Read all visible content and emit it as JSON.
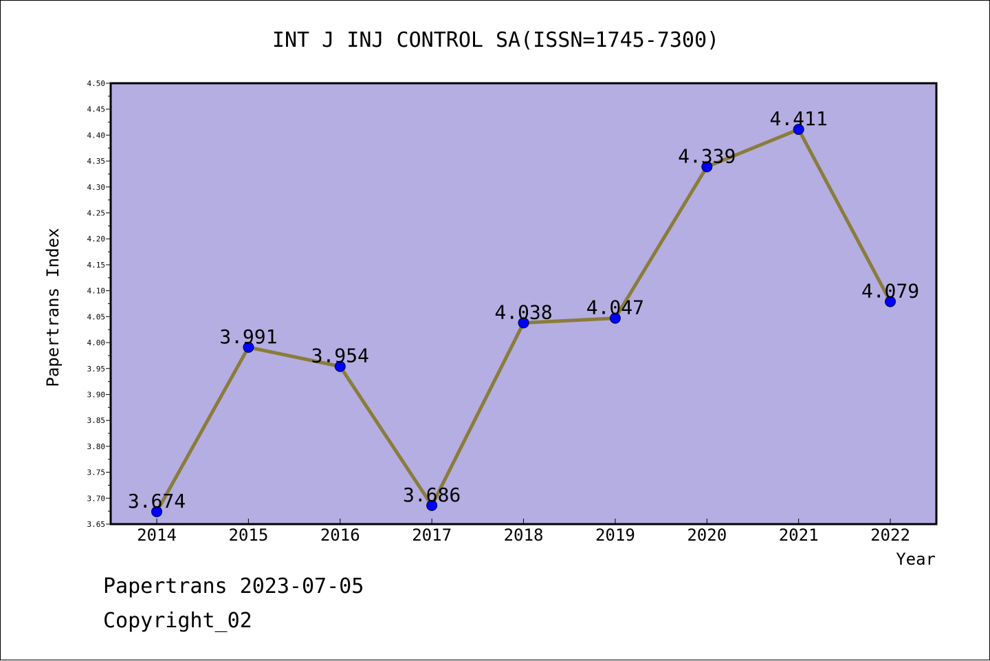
{
  "chart_data": {
    "type": "line",
    "title": "INT J INJ CONTROL SA(ISSN=1745-7300)",
    "xlabel": "Year",
    "ylabel": "Papertrans Index",
    "categories": [
      "2014",
      "2015",
      "2016",
      "2017",
      "2018",
      "2019",
      "2020",
      "2021",
      "2022"
    ],
    "values": [
      3.674,
      3.991,
      3.954,
      3.686,
      4.038,
      4.047,
      4.339,
      4.411,
      4.079
    ],
    "data_labels": [
      "3.674",
      "3.991",
      "3.954",
      "3.686",
      "4.038",
      "4.047",
      "4.339",
      "4.411",
      "4.079"
    ],
    "ylim": [
      3.65,
      4.5
    ],
    "yticks": [
      "3.65",
      "3.70",
      "3.75",
      "3.80",
      "3.85",
      "3.90",
      "3.95",
      "4.00",
      "4.05",
      "4.10",
      "4.15",
      "4.20",
      "4.25",
      "4.30",
      "4.35",
      "4.40",
      "4.45",
      "4.50"
    ],
    "grid": false,
    "colors": {
      "plot_background": "#b4aee2",
      "line": "#8a7c3a",
      "marker": "#0000ff"
    }
  },
  "footer": {
    "line1": "Papertrans 2023-07-05",
    "line2": "Copyright_02"
  }
}
